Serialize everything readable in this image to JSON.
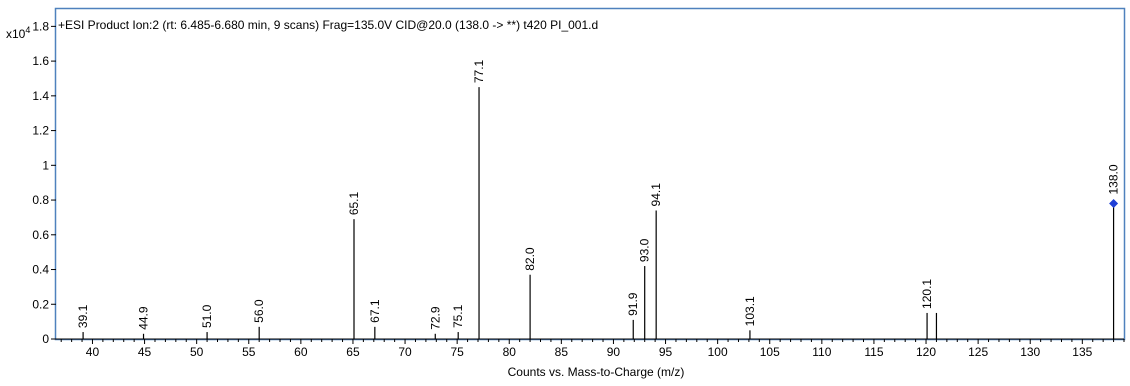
{
  "chart_data": {
    "type": "bar",
    "title": "+ESI Product Ion:2 (rt: 6.485-6.680 min, 9 scans) Frag=135.0V CID@20.0 (138.0 -> **) t420 PI_001.d",
    "y_multiplier": {
      "base": "x10",
      "exponent": "4"
    },
    "xlabel": "Counts vs. Mass-to-Charge (m/z)",
    "ylabel": "",
    "xlim": [
      36.5,
      139
    ],
    "ylim": [
      0,
      1.9
    ],
    "x_ticks": [
      40,
      45,
      50,
      55,
      60,
      65,
      70,
      75,
      80,
      85,
      90,
      95,
      100,
      105,
      110,
      115,
      120,
      125,
      130,
      135
    ],
    "y_ticks": [
      0,
      0.2,
      0.4,
      0.6,
      0.8,
      1,
      1.2,
      1.4,
      1.6,
      1.8
    ],
    "y_tick_labels": [
      "0",
      "0.2",
      "0.4",
      "0.6",
      "0.8",
      "1",
      "1.2",
      "1.4",
      "1.6",
      "1.8"
    ],
    "grid": false,
    "peaks": [
      {
        "mz": 39.1,
        "intensity": 0.04,
        "label": "39.1"
      },
      {
        "mz": 44.9,
        "intensity": 0.03,
        "label": "44.9"
      },
      {
        "mz": 51.0,
        "intensity": 0.04,
        "label": "51.0"
      },
      {
        "mz": 56.0,
        "intensity": 0.07,
        "label": "56.0"
      },
      {
        "mz": 65.1,
        "intensity": 0.69,
        "label": "65.1"
      },
      {
        "mz": 67.1,
        "intensity": 0.07,
        "label": "67.1"
      },
      {
        "mz": 72.9,
        "intensity": 0.03,
        "label": "72.9"
      },
      {
        "mz": 75.1,
        "intensity": 0.04,
        "label": "75.1"
      },
      {
        "mz": 77.1,
        "intensity": 1.45,
        "label": "77.1"
      },
      {
        "mz": 82.0,
        "intensity": 0.37,
        "label": "82.0"
      },
      {
        "mz": 91.9,
        "intensity": 0.11,
        "label": "91.9"
      },
      {
        "mz": 93.0,
        "intensity": 0.42,
        "label": "93.0"
      },
      {
        "mz": 94.1,
        "intensity": 0.74,
        "label": "94.1"
      },
      {
        "mz": 103.1,
        "intensity": 0.05,
        "label": "103.1"
      },
      {
        "mz": 120.1,
        "intensity": 0.15,
        "label": "120.1"
      },
      {
        "mz": 121.0,
        "intensity": 0.15,
        "label": ""
      },
      {
        "mz": 138.0,
        "intensity": 0.78,
        "label": "138.0",
        "precursor_marker": true
      }
    ]
  },
  "colors": {
    "frame": "#4f81bd",
    "axis": "#000000",
    "peak": "#000000",
    "precursor_marker": "#1f3fd6",
    "text": "#000000"
  }
}
